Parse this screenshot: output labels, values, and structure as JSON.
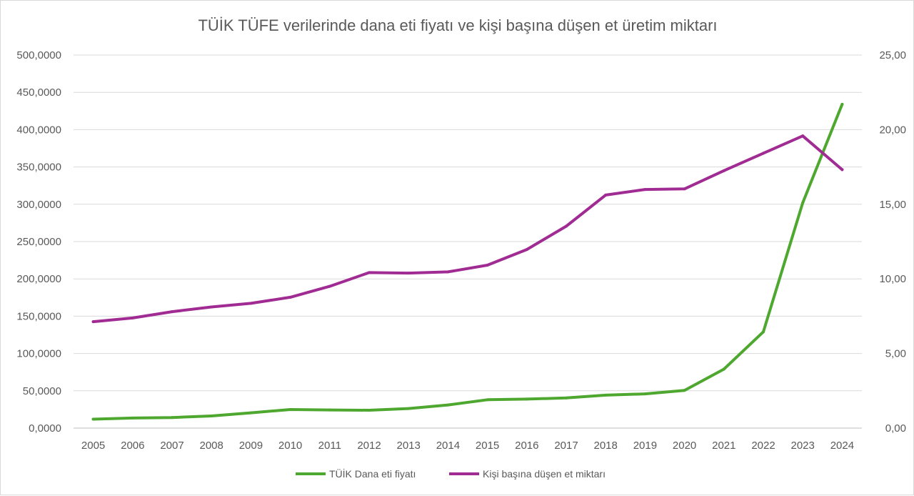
{
  "chart_data": {
    "type": "line",
    "title": "TÜİK TÜFE verilerinde dana eti fiyatı ve kişi başına düşen et üretim miktarı",
    "categories": [
      "2005",
      "2006",
      "2007",
      "2008",
      "2009",
      "2010",
      "2011",
      "2012",
      "2013",
      "2014",
      "2015",
      "2016",
      "2017",
      "2018",
      "2019",
      "2020",
      "2021",
      "2022",
      "2023",
      "2024"
    ],
    "y_left": {
      "min": 0,
      "max": 500,
      "step": 50,
      "tick_labels": [
        "0,0000",
        "50,0000",
        "100,0000",
        "150,0000",
        "200,0000",
        "250,0000",
        "300,0000",
        "350,0000",
        "400,0000",
        "450,0000",
        "500,0000"
      ]
    },
    "y_right": {
      "min": 0,
      "max": 25,
      "step": 5,
      "tick_labels": [
        "0,00",
        "5,00",
        "10,00",
        "15,00",
        "20,00",
        "25,00"
      ]
    },
    "grid": true,
    "legend_position": "bottom",
    "series": [
      {
        "name": "TÜİK Dana eti fiyatı",
        "axis": "left",
        "color": "#4ea72e",
        "values": [
          12.0,
          13.5,
          14.2,
          16.3,
          20.5,
          24.9,
          24.3,
          23.9,
          26.2,
          31.0,
          38.0,
          38.9,
          40.4,
          44.2,
          45.9,
          50.6,
          79.0,
          129.0,
          302.0,
          434.0
        ]
      },
      {
        "name": "Kişi başına düşen et miktarı",
        "axis": "right",
        "color": "#a02b93",
        "values": [
          7.13,
          7.38,
          7.8,
          8.12,
          8.36,
          8.77,
          9.5,
          10.42,
          10.39,
          10.47,
          10.92,
          11.97,
          13.53,
          15.62,
          15.99,
          16.03,
          17.25,
          18.42,
          19.58,
          17.32
        ]
      }
    ]
  }
}
